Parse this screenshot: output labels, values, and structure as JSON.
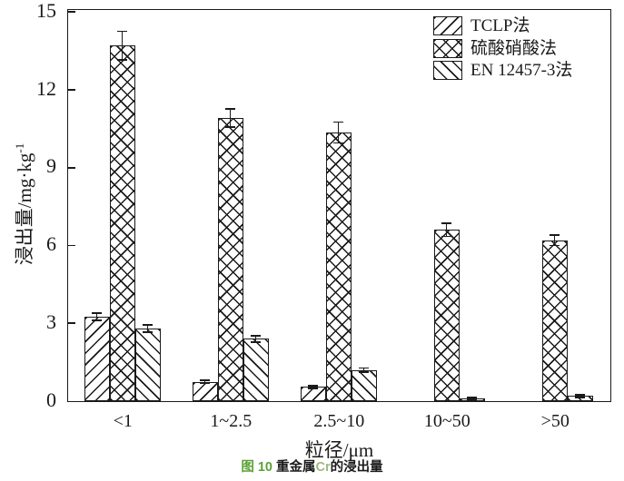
{
  "figure": {
    "caption": {
      "full_text": "图 10 重金属Cr的浸出量",
      "segments": [
        {
          "text": "图 10 ",
          "color": "#5ba135"
        },
        {
          "text": "重金属",
          "color": "#1a1a1a"
        },
        {
          "text": "Cr",
          "color": "#9cb97f"
        },
        {
          "text": "的浸出量",
          "color": "#1a1a1a"
        }
      ]
    },
    "axis_color": "#1a1a1a",
    "background_color": "#ffffff"
  },
  "chart_data": {
    "type": "bar",
    "title": "",
    "xlabel": "粒径/μm",
    "ylabel": "浸出量/mg·kg⁻¹",
    "ylabel_parts": {
      "base": "浸出量/mg·kg",
      "sup": "-1"
    },
    "ylim": [
      0,
      15
    ],
    "yticks": [
      0,
      3,
      6,
      9,
      12,
      15
    ],
    "grid": false,
    "legend_position": "top-right-inside",
    "bar_fill": "#ffffff",
    "line_color": "#1a1a1a",
    "categories": [
      "<1",
      "1~2.5",
      "2.5~10",
      "10~50",
      ">50"
    ],
    "series": [
      {
        "name": "TCLP法",
        "hatch": "forward",
        "values": [
          3.25,
          0.75,
          0.55,
          0,
          0
        ],
        "errors": [
          0.15,
          0.06,
          0.05,
          0,
          0
        ]
      },
      {
        "name": "硫酸硝酸法",
        "hatch": "cross",
        "values": [
          13.7,
          10.9,
          10.35,
          6.6,
          6.2
        ],
        "errors": [
          0.55,
          0.35,
          0.4,
          0.25,
          0.2
        ]
      },
      {
        "name": "EN 12457-3法",
        "hatch": "back",
        "values": [
          2.8,
          2.4,
          1.2,
          0.1,
          0.2
        ],
        "errors": [
          0.15,
          0.12,
          0.08,
          0.03,
          0.05
        ]
      }
    ]
  }
}
